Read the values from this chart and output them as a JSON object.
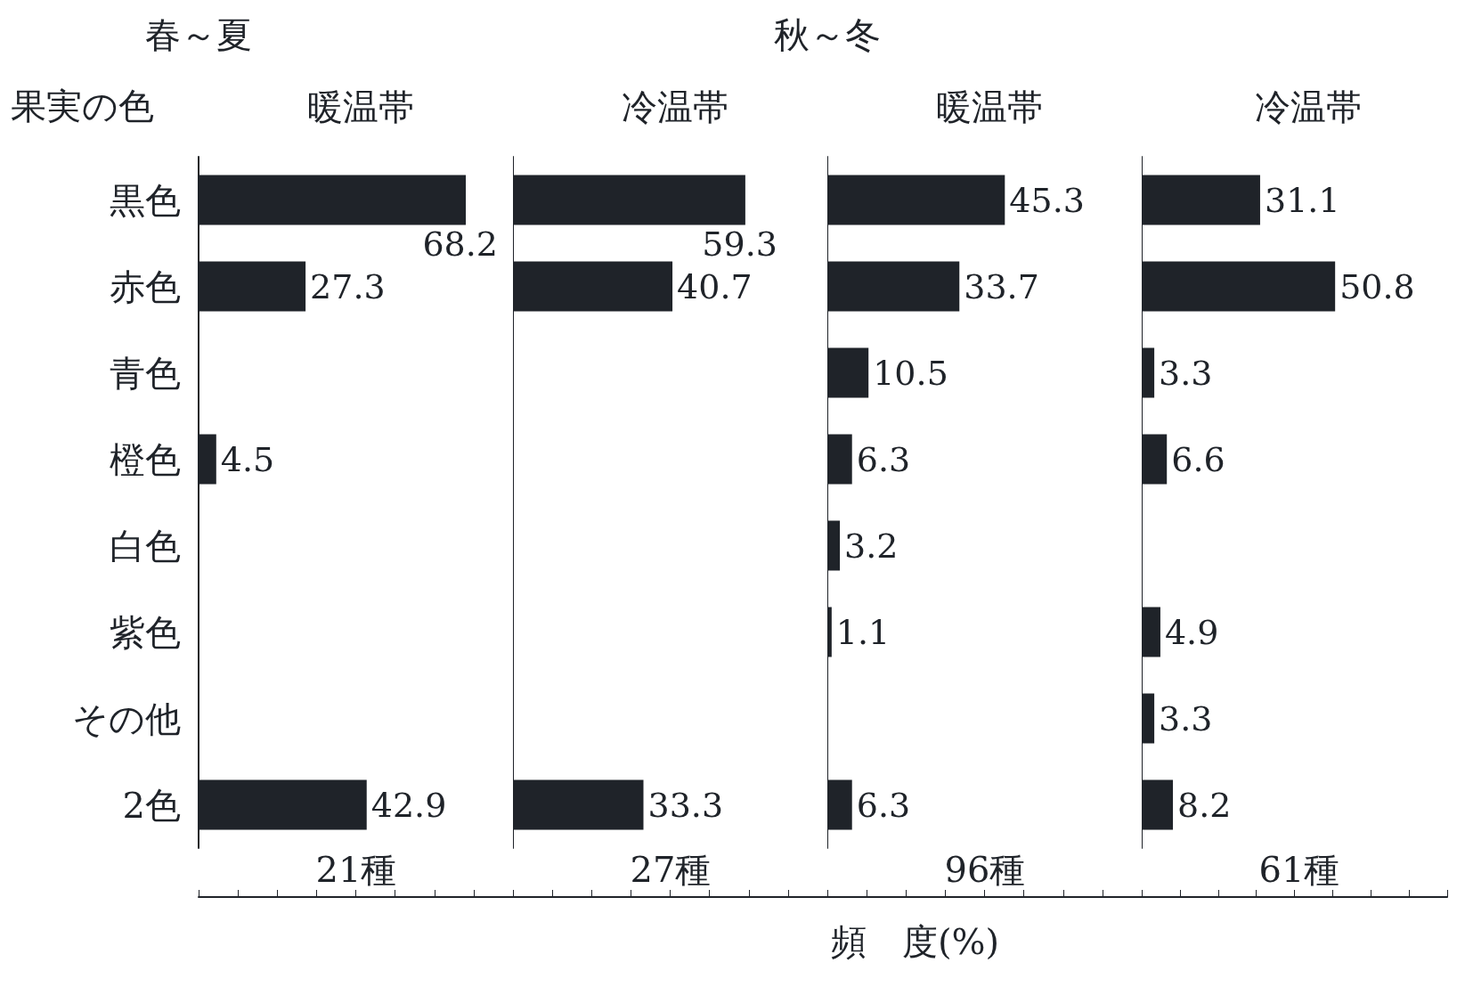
{
  "chart_data": [
    {
      "type": "bar",
      "orientation": "horizontal",
      "title": "暖温帯",
      "ylabel": "果実の色",
      "annotations": [
        "春～夏",
        "21種"
      ],
      "categories": [
        "黒色",
        "赤色",
        "青色",
        "橙色",
        "白色",
        "紫色",
        "その他",
        "2色"
      ],
      "values": [
        68.2,
        27.3,
        null,
        4.5,
        null,
        null,
        null,
        42.9
      ],
      "color": "#1f2329",
      "tick_labels": "y",
      "data_labels": true
    },
    {
      "type": "bar",
      "orientation": "horizontal",
      "title": "冷温帯",
      "annotations": [
        "27種"
      ],
      "values": [
        59.3,
        40.7,
        null,
        null,
        null,
        null,
        null,
        33.3
      ],
      "color": "#1f2329",
      "tick_labels": false,
      "data_labels": true
    },
    {
      "type": "bar",
      "orientation": "horizontal",
      "title": "暖温帯",
      "xlabel": "頻　度(%)",
      "annotations": [
        "秋～冬",
        "96種"
      ],
      "values": [
        45.3,
        33.7,
        10.5,
        6.3,
        3.2,
        1.1,
        null,
        6.3
      ],
      "color": "#1f2329",
      "tick_labels": false,
      "data_labels": true
    },
    {
      "type": "bar",
      "orientation": "horizontal",
      "title": "冷温帯",
      "annotations": [
        "61種"
      ],
      "values": [
        31.1,
        50.8,
        3.3,
        6.6,
        null,
        4.9,
        3.3,
        8.2
      ],
      "color": "#1f2329",
      "tick_labels": false,
      "data_labels": true
    }
  ]
}
